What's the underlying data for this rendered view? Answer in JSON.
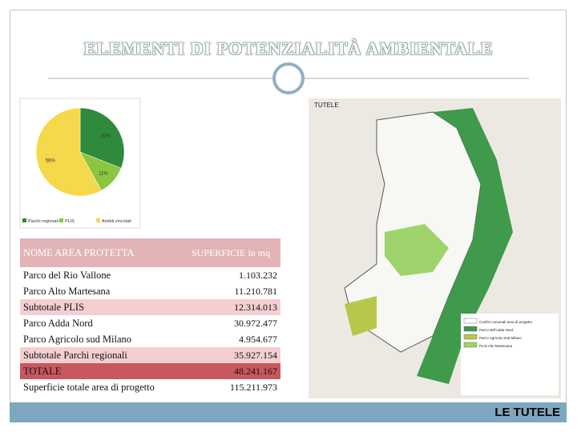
{
  "title": "ELEMENTI DI POTENZIALITÀ AMBIENTALE",
  "pie": {
    "values": [
      31,
      11,
      58
    ],
    "value_labels": [
      "31%",
      "11%",
      "58%"
    ],
    "names": [
      "Parchi regionali",
      "PLIS",
      "Ambiti vincolati"
    ],
    "colors": [
      "#2f8a3c",
      "#8cc63f",
      "#f4d94a"
    ]
  },
  "table": {
    "header": [
      "NOME AREA PROTETTA",
      "SUPERFICIE in mq"
    ],
    "rows": [
      [
        "Parco del Rio Vallone",
        "1.103.232"
      ],
      [
        "Parco Alto Martesana",
        "11.210.781"
      ],
      [
        "Subtotale PLIS",
        "12.314.013"
      ],
      [
        "Parco Adda Nord",
        "30.972.477"
      ],
      [
        "Parco Agricolo sud Milano",
        "4.954.677"
      ],
      [
        "Subtotale Parchi regionali",
        "35.927.154"
      ],
      [
        "TOTALE",
        "48.241.167"
      ],
      [
        "Superficie totale area di progetto",
        "115.211.973"
      ]
    ]
  },
  "map": {
    "title": "TUTELE",
    "legend": [
      "Confini comunali area di progetto",
      "Parco dell'Adda Nord",
      "Parco Agricolo Sud Milano",
      "PLIS Alto Martesana"
    ]
  },
  "footer": "LE TUTELE"
}
